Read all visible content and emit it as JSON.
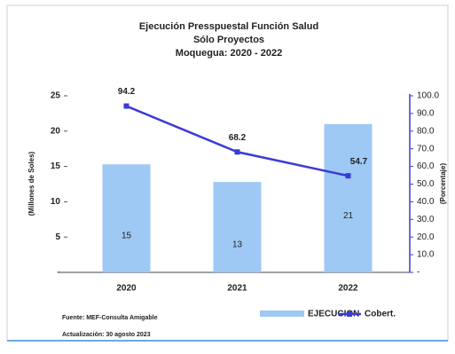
{
  "chart_data": {
    "type": "bar",
    "title": [
      "Ejecución Presspuestal Función Salud",
      "Sólo Proyectos",
      "Moquegua: 2020 - 2022"
    ],
    "y_label": "(Millones de Soles)",
    "y2_label": "(Porcentaje)",
    "categories": [
      "2020",
      "2021",
      "2022"
    ],
    "series": [
      {
        "name": "EJECUCION",
        "type": "bar",
        "color": "#9dc9f4",
        "values": [
          15.3,
          12.8,
          21
        ],
        "value_labels": [
          "15",
          "13",
          "21"
        ]
      },
      {
        "name": "Cobert.",
        "type": "line",
        "axis": "y2",
        "color": "#3b3bd6",
        "values": [
          94.2,
          68.2,
          54.7
        ]
      }
    ],
    "ylim": [
      0,
      25
    ],
    "yticks": [
      {
        "value": 0,
        "label": "-"
      },
      5,
      10,
      15,
      20,
      25
    ],
    "y2lim": [
      0,
      100
    ],
    "y2ticks": [
      {
        "value": 0,
        "label": "-"
      },
      {
        "value": 10,
        "label": "10.0"
      },
      {
        "value": 20,
        "label": "20.0"
      },
      {
        "value": 30,
        "label": "30.0"
      },
      {
        "value": 40,
        "label": "40.0"
      },
      {
        "value": 50,
        "label": "50.0"
      },
      {
        "value": 60,
        "label": "60.0"
      },
      {
        "value": 70,
        "label": "70.0"
      },
      {
        "value": 80,
        "label": "80.0"
      },
      {
        "value": 90,
        "label": "90.0"
      },
      {
        "value": 100,
        "label": "100.0"
      }
    ],
    "legend": "bottom-right",
    "notes": [
      "Fuente: MEF-Consulta Amigable",
      "Actualización: 30 agosto 2023"
    ]
  }
}
